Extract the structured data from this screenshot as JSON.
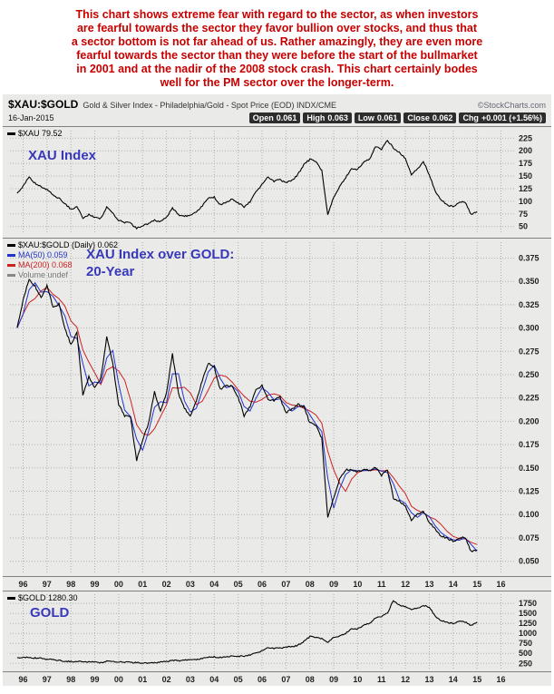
{
  "annotation": {
    "lines": [
      "This chart shows extreme fear with regard to the sector, as when investors",
      "are fearful towards the sector they favor bullion over stocks, and thus that",
      "a sector bottom is not far ahead of us. Rather amazingly, they are even more",
      "fearful towards the sector than they were before the start of the bullmarket",
      "in 2001 and at the nadir of the 2008 stock crash. This chart certainly bodes",
      "well for the PM sector over the longer-term."
    ],
    "color": "#c80000"
  },
  "header": {
    "symbol": "$XAU:$GOLD",
    "description": "Gold & Silver Index - Philadelphia/Gold - Spot Price (EOD) INDX/CME",
    "source": "©StockCharts.com",
    "date": "16-Jan-2015",
    "quote": [
      {
        "label": "Open",
        "value": "0.061"
      },
      {
        "label": "High",
        "value": "0.063"
      },
      {
        "label": "Low",
        "value": "0.061"
      },
      {
        "label": "Close",
        "value": "0.062"
      },
      {
        "label": "Chg",
        "value": "+0.001 (+1.56%)"
      }
    ]
  },
  "panels": {
    "xau": {
      "legend": "$XAU 79.52",
      "label": "XAU Index"
    },
    "ratio": {
      "legend_main": "$XAU:$GOLD (Daily) 0.062",
      "legend_ma50": "MA(50) 0.059",
      "legend_ma200": "MA(200) 0.068",
      "legend_volume": "Volume undef",
      "label_line1": "XAU Index over GOLD:",
      "label_line2": "20-Year"
    },
    "gold": {
      "legend": "$GOLD 1280.30",
      "label": "GOLD"
    }
  },
  "colors": {
    "chart_bg": "#eaeae8",
    "price_line": "#000000",
    "ma50": "#2233cc",
    "ma200": "#cc2222",
    "blue_label": "#3838bb",
    "annotation_red": "#c80000",
    "badge_bg": "#2d2d2d"
  },
  "x_axis": {
    "years": [
      1996,
      1997,
      1998,
      1999,
      2000,
      2001,
      2002,
      2003,
      2004,
      2005,
      2006,
      2007,
      2008,
      2009,
      2010,
      2011,
      2012,
      2013,
      2014,
      2015,
      2016
    ],
    "labels": [
      "96",
      "97",
      "98",
      "99",
      "00",
      "01",
      "02",
      "03",
      "04",
      "05",
      "06",
      "07",
      "08",
      "09",
      "10",
      "11",
      "12",
      "13",
      "14",
      "15",
      "16"
    ]
  },
  "chart_data": [
    {
      "id": "xau",
      "type": "line",
      "title": "$XAU",
      "last_value": 79.52,
      "x_start": 1995.75,
      "x_step": 0.25,
      "x_range": [
        1995.45,
        2016.55
      ],
      "y_range": [
        35,
        240
      ],
      "y_ticks": [
        225,
        200,
        175,
        150,
        125,
        100,
        75,
        50
      ],
      "y_tick_labels": [
        "225",
        "200",
        "175",
        "150",
        "125",
        "100",
        "75",
        "50"
      ],
      "series": [
        {
          "name": "$XAU",
          "color": "#000000",
          "width": 1.1,
          "jitter": 1.8,
          "values": [
            115,
            130,
            148,
            136,
            128,
            124,
            112,
            106,
            96,
            84,
            90,
            66,
            74,
            68,
            66,
            88,
            76,
            62,
            58,
            57,
            46,
            52,
            56,
            63,
            59,
            68,
            86,
            73,
            70,
            73,
            79,
            91,
            106,
            108,
            93,
            97,
            105,
            97,
            89,
            99,
            119,
            133,
            149,
            139,
            143,
            137,
            141,
            153,
            173,
            183,
            179,
            161,
            72,
            108,
            129,
            147,
            165,
            163,
            177,
            183,
            209,
            203,
            221,
            206,
            196,
            186,
            153,
            163,
            179,
            153,
            119,
            103,
            93,
            89,
            97,
            99,
            73,
            79.5
          ]
        }
      ]
    },
    {
      "id": "ratio",
      "type": "line",
      "title": "$XAU:$GOLD (Daily)",
      "last_value": 0.062,
      "ma50_value": 0.059,
      "ma200_value": 0.068,
      "x_start": 1995.75,
      "x_step": 0.25,
      "x_range": [
        1995.45,
        2016.55
      ],
      "y_range": [
        0.038,
        0.392
      ],
      "y_ticks": [
        0.375,
        0.35,
        0.325,
        0.3,
        0.275,
        0.25,
        0.225,
        0.2,
        0.175,
        0.15,
        0.125,
        0.1,
        0.075,
        0.05
      ],
      "y_tick_labels": [
        "0.375",
        "0.350",
        "0.325",
        "0.300",
        "0.275",
        "0.250",
        "0.225",
        "0.200",
        "0.175",
        "0.150",
        "0.125",
        "0.100",
        "0.075",
        "0.050"
      ],
      "series": [
        {
          "name": "$XAU:$GOLD",
          "color": "#000000",
          "width": 1.1,
          "jitter": 2.4,
          "values": [
            0.3,
            0.33,
            0.352,
            0.345,
            0.332,
            0.346,
            0.322,
            0.326,
            0.3,
            0.282,
            0.296,
            0.228,
            0.248,
            0.236,
            0.246,
            0.29,
            0.262,
            0.218,
            0.206,
            0.204,
            0.158,
            0.18,
            0.198,
            0.232,
            0.21,
            0.23,
            0.272,
            0.23,
            0.214,
            0.206,
            0.222,
            0.244,
            0.262,
            0.258,
            0.234,
            0.238,
            0.238,
            0.226,
            0.206,
            0.216,
            0.234,
            0.238,
            0.224,
            0.222,
            0.226,
            0.209,
            0.213,
            0.218,
            0.216,
            0.198,
            0.196,
            0.182,
            0.096,
            0.118,
            0.138,
            0.148,
            0.148,
            0.146,
            0.148,
            0.147,
            0.151,
            0.142,
            0.148,
            0.118,
            0.114,
            0.11,
            0.094,
            0.1,
            0.104,
            0.092,
            0.084,
            0.077,
            0.075,
            0.071,
            0.074,
            0.076,
            0.06,
            0.062
          ]
        },
        {
          "name": "MA(50)",
          "color": "#2233cc",
          "width": 1,
          "jitter": 0,
          "derived": "ma",
          "window": 2,
          "source": 0
        },
        {
          "name": "MA(200)",
          "color": "#cc2222",
          "width": 1,
          "jitter": 0,
          "derived": "ma",
          "window": 4,
          "source": 0
        }
      ]
    },
    {
      "id": "gold",
      "type": "line",
      "title": "$GOLD",
      "last_value": 1280.3,
      "x_start": 1995.75,
      "x_step": 0.25,
      "x_range": [
        1995.45,
        2016.55
      ],
      "y_range": [
        120,
        1980
      ],
      "y_ticks": [
        1750,
        1500,
        1250,
        1000,
        750,
        500,
        250
      ],
      "y_tick_labels": [
        "1750",
        "1500",
        "1250",
        "1000",
        "750",
        "500",
        "250"
      ],
      "series": [
        {
          "name": "$GOLD",
          "color": "#000000",
          "width": 1.1,
          "jitter": 1.4,
          "values": [
            385,
            400,
            394,
            386,
            378,
            356,
            345,
            326,
            306,
            296,
            301,
            286,
            294,
            288,
            266,
            302,
            292,
            286,
            279,
            277,
            268,
            262,
            261,
            271,
            279,
            296,
            321,
            316,
            331,
            351,
            346,
            376,
            401,
            411,
            396,
            406,
            441,
            428,
            431,
            461,
            511,
            561,
            652,
            621,
            631,
            656,
            666,
            701,
            801,
            921,
            901,
            871,
            761,
            901,
            931,
            1001,
            1121,
            1111,
            1201,
            1246,
            1391,
            1421,
            1511,
            1830,
            1701,
            1681,
            1601,
            1621,
            1701,
            1661,
            1421,
            1321,
            1281,
            1241,
            1301,
            1291,
            1191,
            1280
          ]
        }
      ]
    }
  ]
}
